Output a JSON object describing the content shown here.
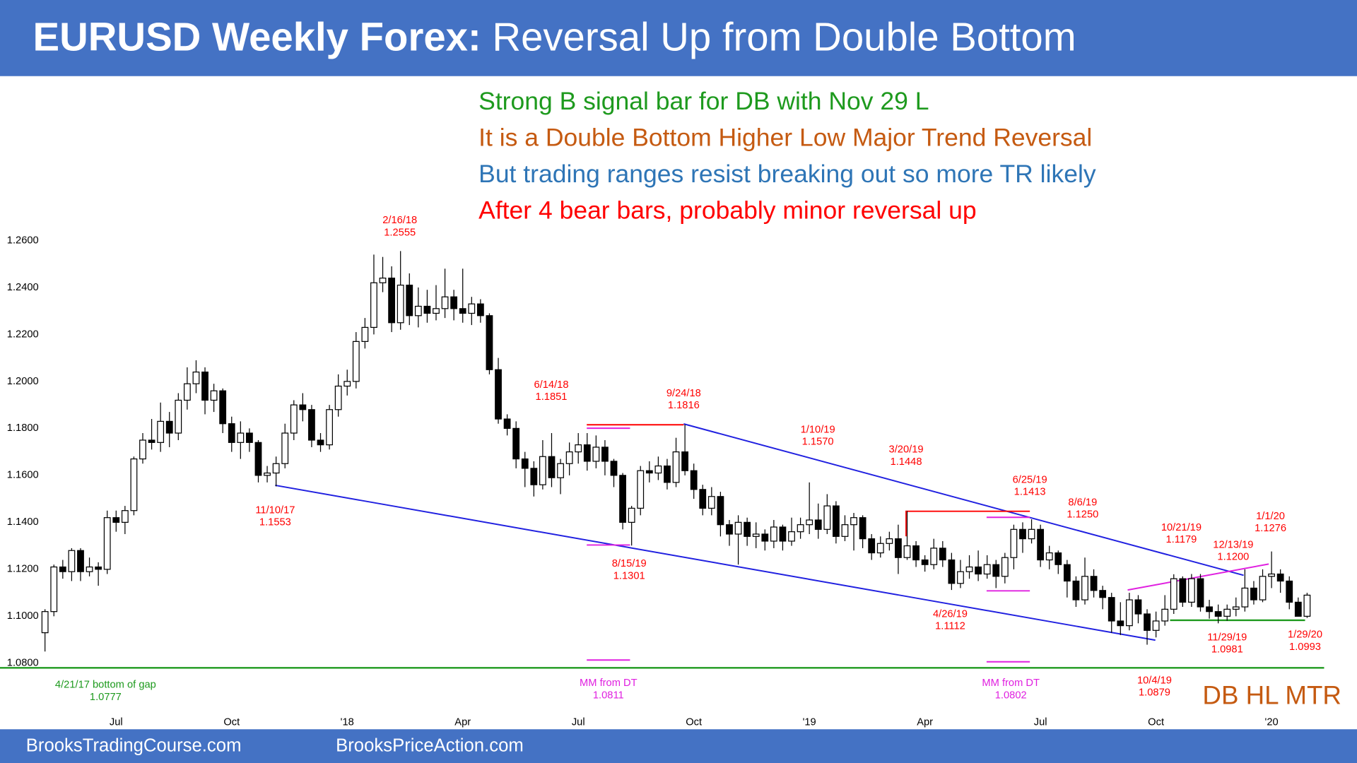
{
  "header": {
    "title_bold": "EURUSD Weekly Forex:",
    "title_rest": "Reversal Up from Double Bottom"
  },
  "footer": {
    "left": "BrooksTradingCourse.com",
    "right": "BrooksPriceAction.com"
  },
  "commentary": [
    {
      "text": "Strong B signal bar for DB with Nov 29 L",
      "color": "#1e9a1e"
    },
    {
      "text": "It is a Double Bottom Higher Low Major Trend Reversal",
      "color": "#c55a11"
    },
    {
      "text": "But trading ranges resist breaking out so more TR likely",
      "color": "#2e75b6"
    },
    {
      "text": "After 4 bear bars, probably minor reversal up",
      "color": "#ff0000"
    }
  ],
  "pattern_label": {
    "text": "DB HL MTR",
    "color": "#c55a11"
  },
  "price_notes": [
    {
      "label": "2/16/18",
      "price": "1.2555",
      "color": "#ff0000"
    },
    {
      "label": "6/14/18",
      "price": "1.1851",
      "color": "#ff0000"
    },
    {
      "label": "9/24/18",
      "price": "1.1816",
      "color": "#ff0000"
    },
    {
      "label": "11/10/17",
      "price": "1.1553",
      "color": "#ff0000"
    },
    {
      "label": "8/15/19",
      "price": "1.1301",
      "color": "#ff0000"
    },
    {
      "label": "1/10/19",
      "price": "1.1570",
      "color": "#ff0000"
    },
    {
      "label": "3/20/19",
      "price": "1.1448",
      "color": "#ff0000"
    },
    {
      "label": "6/25/19",
      "price": "1.1413",
      "color": "#ff0000"
    },
    {
      "label": "8/6/19",
      "price": "1.1250",
      "color": "#ff0000"
    },
    {
      "label": "4/26/19",
      "price": "1.1112",
      "color": "#ff0000"
    },
    {
      "label": "10/21/19",
      "price": "1.1179",
      "color": "#ff0000"
    },
    {
      "label": "12/13/19",
      "price": "1.1200",
      "color": "#ff0000"
    },
    {
      "label": "1/1/20",
      "price": "1.1276",
      "color": "#ff0000"
    },
    {
      "label": "11/29/19",
      "price": "1.0981",
      "color": "#ff0000"
    },
    {
      "label": "1/29/20",
      "price": "1.0993",
      "color": "#ff0000"
    },
    {
      "label": "10/4/19",
      "price": "1.0879",
      "color": "#ff0000"
    },
    {
      "label": "4/21/17 bottom of gap",
      "price": "1.0777",
      "color": "#1e9a1e"
    },
    {
      "label": "MM from DT",
      "price": "1.0811",
      "color": "#e020e0"
    },
    {
      "label": "MM from DT",
      "price": "1.0802",
      "color": "#e020e0"
    }
  ],
  "chart_data": {
    "type": "candlestick",
    "grid": false,
    "ylim": [
      1.06,
      1.26
    ],
    "yticks": [
      {
        "value": 1.08,
        "label": "1.0800"
      },
      {
        "value": 1.1,
        "label": "1.1000"
      },
      {
        "value": 1.12,
        "label": "1.1200"
      },
      {
        "value": 1.14,
        "label": "1.1400"
      },
      {
        "value": 1.16,
        "label": "1.1600"
      },
      {
        "value": 1.18,
        "label": "1.1800"
      },
      {
        "value": 1.2,
        "label": "1.2000"
      },
      {
        "value": 1.22,
        "label": "1.2200"
      },
      {
        "value": 1.24,
        "label": "1.2400"
      },
      {
        "value": 1.26,
        "label": "1.2600"
      }
    ],
    "up_color": "#ffffff",
    "down_color": "#000000",
    "edge_color": "#000000",
    "categories": [
      null,
      null,
      null,
      null,
      null,
      null,
      null,
      null,
      "Jul",
      null,
      null,
      null,
      null,
      null,
      null,
      null,
      null,
      null,
      null,
      null,
      null,
      "Oct",
      null,
      null,
      null,
      null,
      null,
      null,
      null,
      null,
      null,
      null,
      null,
      null,
      "'18",
      null,
      null,
      null,
      null,
      null,
      null,
      null,
      null,
      null,
      null,
      null,
      null,
      "Apr",
      null,
      null,
      null,
      null,
      null,
      null,
      null,
      null,
      null,
      null,
      null,
      null,
      "Jul",
      null,
      null,
      null,
      null,
      null,
      null,
      null,
      null,
      null,
      null,
      null,
      null,
      "Oct",
      null,
      null,
      null,
      null,
      null,
      null,
      null,
      null,
      null,
      null,
      null,
      null,
      "'19",
      null,
      null,
      null,
      null,
      null,
      null,
      null,
      null,
      null,
      null,
      null,
      null,
      "Apr",
      null,
      null,
      null,
      null,
      null,
      null,
      null,
      null,
      null,
      null,
      null,
      null,
      "Jul",
      null,
      null,
      null,
      null,
      null,
      null,
      null,
      null,
      null,
      null,
      null,
      null,
      "Oct",
      null,
      null,
      null,
      null,
      null,
      null,
      null,
      null,
      null,
      null,
      null,
      null,
      "'20",
      null,
      null,
      null,
      null
    ],
    "open": [
      1.093,
      1.102,
      1.121,
      1.119,
      1.128,
      1.119,
      1.121,
      1.12,
      1.142,
      1.14,
      1.145,
      1.167,
      1.175,
      1.174,
      1.183,
      1.178,
      1.192,
      1.199,
      1.204,
      1.192,
      1.196,
      1.182,
      1.174,
      1.178,
      1.174,
      1.16,
      1.161,
      1.165,
      1.178,
      1.19,
      1.188,
      1.175,
      1.173,
      1.188,
      1.198,
      1.2,
      1.217,
      1.223,
      1.242,
      1.244,
      1.225,
      1.241,
      1.228,
      1.232,
      1.229,
      1.231,
      1.236,
      1.231,
      1.229,
      1.233,
      1.228,
      1.205,
      1.184,
      1.18,
      1.167,
      1.163,
      1.156,
      1.168,
      1.159,
      1.165,
      1.17,
      1.173,
      1.166,
      1.172,
      1.166,
      1.16,
      1.14,
      1.146,
      1.162,
      1.161,
      1.164,
      1.157,
      1.17,
      1.162,
      1.154,
      1.146,
      1.151,
      1.139,
      1.135,
      1.14,
      1.134,
      1.135,
      1.132,
      1.138,
      1.132,
      1.136,
      1.139,
      1.141,
      1.137,
      1.147,
      1.134,
      1.139,
      1.142,
      1.133,
      1.127,
      1.131,
      1.133,
      1.125,
      1.13,
      1.124,
      1.122,
      1.129,
      1.124,
      1.114,
      1.119,
      1.121,
      1.118,
      1.122,
      1.117,
      1.125,
      1.137,
      1.133,
      1.137,
      1.124,
      1.127,
      1.122,
      1.115,
      1.107,
      1.117,
      1.111,
      1.108,
      1.098,
      1.096,
      1.107,
      1.101,
      1.094,
      1.098,
      1.103,
      1.116,
      1.106,
      1.116,
      1.104,
      1.102,
      1.1,
      1.103,
      1.104,
      1.112,
      1.107,
      1.117,
      1.118,
      1.115,
      1.106,
      1.1
    ],
    "high": [
      1.103,
      1.122,
      1.124,
      1.129,
      1.129,
      1.125,
      1.123,
      1.145,
      1.145,
      1.147,
      1.168,
      1.178,
      1.184,
      1.191,
      1.187,
      1.195,
      1.206,
      1.209,
      1.206,
      1.199,
      1.197,
      1.185,
      1.183,
      1.18,
      1.175,
      1.164,
      1.168,
      1.182,
      1.192,
      1.195,
      1.19,
      1.178,
      1.19,
      1.203,
      1.205,
      1.221,
      1.227,
      1.254,
      1.253,
      1.249,
      1.2555,
      1.246,
      1.24,
      1.239,
      1.241,
      1.248,
      1.239,
      1.248,
      1.236,
      1.235,
      1.229,
      1.21,
      1.186,
      1.183,
      1.17,
      1.166,
      1.175,
      1.178,
      1.167,
      1.174,
      1.178,
      1.178,
      1.177,
      1.175,
      1.167,
      1.161,
      1.147,
      1.164,
      1.166,
      1.168,
      1.167,
      1.176,
      1.1816,
      1.165,
      1.156,
      1.155,
      1.153,
      1.141,
      1.143,
      1.142,
      1.14,
      1.137,
      1.141,
      1.139,
      1.142,
      1.142,
      1.157,
      1.148,
      1.152,
      1.149,
      1.143,
      1.144,
      1.143,
      1.135,
      1.134,
      1.136,
      1.139,
      1.1448,
      1.132,
      1.126,
      1.133,
      1.132,
      1.127,
      1.124,
      1.126,
      1.128,
      1.126,
      1.124,
      1.127,
      1.139,
      1.14,
      1.1413,
      1.139,
      1.13,
      1.128,
      1.124,
      1.117,
      1.125,
      1.12,
      1.113,
      1.11,
      1.106,
      1.11,
      1.109,
      1.103,
      1.102,
      1.109,
      1.1179,
      1.117,
      1.118,
      1.118,
      1.107,
      1.105,
      1.105,
      1.108,
      1.12,
      1.115,
      1.12,
      1.1276,
      1.12,
      1.117,
      1.108,
      1.11
    ],
    "low": [
      1.085,
      1.1,
      1.116,
      1.115,
      1.115,
      1.117,
      1.113,
      1.118,
      1.136,
      1.135,
      1.143,
      1.165,
      1.171,
      1.17,
      1.172,
      1.175,
      1.188,
      1.195,
      1.186,
      1.187,
      1.178,
      1.17,
      1.167,
      1.17,
      1.157,
      1.157,
      1.1553,
      1.163,
      1.175,
      1.183,
      1.172,
      1.17,
      1.171,
      1.185,
      1.194,
      1.197,
      1.214,
      1.22,
      1.238,
      1.221,
      1.222,
      1.224,
      1.223,
      1.225,
      1.226,
      1.227,
      1.226,
      1.225,
      1.224,
      1.225,
      1.203,
      1.182,
      1.177,
      1.163,
      1.155,
      1.151,
      1.154,
      1.155,
      1.152,
      1.16,
      1.165,
      1.162,
      1.163,
      1.16,
      1.155,
      1.137,
      1.1301,
      1.143,
      1.157,
      1.158,
      1.154,
      1.155,
      1.16,
      1.15,
      1.143,
      1.143,
      1.134,
      1.13,
      1.122,
      1.13,
      1.129,
      1.128,
      1.129,
      1.128,
      1.13,
      1.133,
      1.135,
      1.133,
      1.135,
      1.131,
      1.132,
      1.128,
      1.129,
      1.124,
      1.125,
      1.128,
      1.118,
      1.124,
      1.121,
      1.119,
      1.12,
      1.121,
      1.1112,
      1.112,
      1.116,
      1.115,
      1.116,
      1.112,
      1.114,
      1.12,
      1.127,
      1.131,
      1.121,
      1.12,
      1.118,
      1.108,
      1.104,
      1.105,
      1.108,
      1.103,
      1.093,
      1.092,
      1.094,
      1.097,
      1.0879,
      1.091,
      1.096,
      1.101,
      1.104,
      1.104,
      1.102,
      1.099,
      1.097,
      1.0981,
      1.1,
      1.102,
      1.105,
      1.106,
      1.112,
      1.11,
      1.103,
      1.1,
      1.0993
    ],
    "close": [
      1.102,
      1.121,
      1.119,
      1.128,
      1.119,
      1.121,
      1.12,
      1.142,
      1.14,
      1.145,
      1.167,
      1.175,
      1.174,
      1.183,
      1.178,
      1.192,
      1.199,
      1.204,
      1.192,
      1.196,
      1.182,
      1.174,
      1.178,
      1.174,
      1.16,
      1.161,
      1.165,
      1.178,
      1.19,
      1.188,
      1.175,
      1.173,
      1.188,
      1.198,
      1.2,
      1.217,
      1.223,
      1.242,
      1.244,
      1.225,
      1.241,
      1.228,
      1.232,
      1.229,
      1.231,
      1.236,
      1.231,
      1.229,
      1.233,
      1.228,
      1.205,
      1.184,
      1.18,
      1.167,
      1.163,
      1.156,
      1.168,
      1.159,
      1.165,
      1.17,
      1.173,
      1.166,
      1.172,
      1.166,
      1.16,
      1.14,
      1.146,
      1.162,
      1.161,
      1.164,
      1.157,
      1.17,
      1.162,
      1.154,
      1.146,
      1.151,
      1.139,
      1.135,
      1.14,
      1.134,
      1.135,
      1.132,
      1.138,
      1.132,
      1.136,
      1.139,
      1.141,
      1.137,
      1.147,
      1.134,
      1.139,
      1.142,
      1.133,
      1.127,
      1.131,
      1.133,
      1.125,
      1.13,
      1.124,
      1.122,
      1.129,
      1.124,
      1.114,
      1.119,
      1.121,
      1.118,
      1.122,
      1.117,
      1.125,
      1.137,
      1.133,
      1.137,
      1.124,
      1.127,
      1.122,
      1.115,
      1.107,
      1.117,
      1.111,
      1.108,
      1.098,
      1.096,
      1.107,
      1.101,
      1.094,
      1.098,
      1.103,
      1.116,
      1.106,
      1.116,
      1.104,
      1.102,
      1.1,
      1.103,
      1.104,
      1.112,
      1.107,
      1.117,
      1.118,
      1.115,
      1.106,
      1.1,
      1.109
    ]
  }
}
